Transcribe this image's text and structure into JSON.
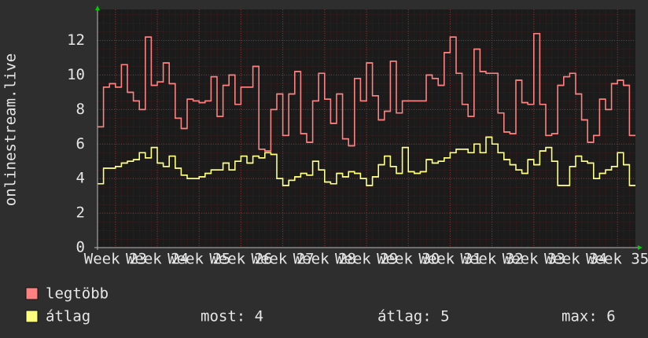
{
  "chart_data": {
    "type": "step",
    "y_label": "onlinestream.live",
    "x": [
      0,
      1,
      2,
      3,
      4,
      5,
      6,
      7,
      8,
      9,
      10,
      11,
      12,
      13,
      14,
      15,
      16,
      17,
      18,
      19,
      20,
      21,
      22,
      23,
      24,
      25,
      26,
      27,
      28,
      29,
      30,
      31,
      32,
      33,
      34,
      35,
      36,
      37,
      38,
      39,
      40,
      41,
      42,
      43,
      44,
      45,
      46,
      47,
      48,
      49,
      50,
      51,
      52,
      53,
      54,
      55,
      56,
      57,
      58,
      59,
      60,
      61,
      62,
      63,
      64,
      65,
      66,
      67,
      68,
      69,
      70,
      71,
      72,
      73,
      74,
      75,
      76,
      77,
      78,
      79,
      80,
      81,
      82,
      83,
      84,
      85,
      86,
      87,
      88,
      89
    ],
    "series": [
      {
        "name": "legtöbb",
        "color": "#ff8080",
        "values": [
          7,
          9.3,
          9.5,
          9.3,
          10.6,
          9,
          8.5,
          8,
          12.2,
          9.4,
          9.6,
          10.7,
          9.5,
          7.5,
          6.9,
          8.6,
          8.5,
          8.4,
          8.5,
          9.9,
          7.6,
          9.4,
          10,
          8.3,
          9.3,
          9.3,
          10.5,
          5.7,
          5.6,
          8,
          8.9,
          6.5,
          8.9,
          10.2,
          6.6,
          6.1,
          8.5,
          10.1,
          8.6,
          7.2,
          8.9,
          6.3,
          5.9,
          9.8,
          8.5,
          10.7,
          8.8,
          7.4,
          7.9,
          10.8,
          7.8,
          8.5,
          8.5,
          8.5,
          8.5,
          10,
          9.8,
          9.4,
          11.3,
          12.2,
          10.1,
          8.3,
          7.6,
          11.5,
          10.2,
          10.1,
          10.1,
          7.8,
          6.7,
          6.6,
          9.7,
          8.4,
          8.3,
          12.4,
          8.3,
          6.5,
          6.6,
          9.4,
          9.9,
          10.1,
          8.9,
          7.4,
          6.1,
          6.5,
          8.6,
          8,
          9.5,
          9.7,
          9.4,
          6.5
        ]
      },
      {
        "name": "átlag",
        "color": "#ffff80",
        "values": [
          3.7,
          4.6,
          4.6,
          4.7,
          4.9,
          5,
          5.1,
          5.5,
          5.2,
          5.8,
          4.9,
          4.7,
          5.3,
          4.6,
          4.2,
          4,
          4,
          4.1,
          4.3,
          4.5,
          4.5,
          4.9,
          4.5,
          5,
          5.3,
          4.9,
          5.3,
          5.2,
          5.5,
          5.4,
          4,
          3.6,
          3.9,
          4.1,
          4.3,
          4.2,
          5,
          4.5,
          3.8,
          3.7,
          4.3,
          4.1,
          4.4,
          4.3,
          4,
          3.6,
          4.1,
          4.8,
          5.3,
          4.7,
          4.3,
          5.8,
          4.4,
          4.3,
          4.4,
          5.1,
          4.9,
          5,
          5.2,
          5.5,
          5.7,
          5.7,
          5.5,
          6,
          5.5,
          6.4,
          6,
          5.5,
          5.1,
          4.8,
          4.5,
          4.3,
          5.1,
          4.8,
          5.6,
          5.8,
          5,
          3.6,
          3.6,
          4.7,
          5.3,
          5,
          4.9,
          4,
          4.3,
          4.5,
          4.7,
          5.5,
          4.8,
          3.6
        ]
      }
    ],
    "xlim": [
      0,
      90
    ],
    "xticks": [
      {
        "value": 3,
        "label": "Week 23"
      },
      {
        "value": 10,
        "label": "Week 24"
      },
      {
        "value": 17,
        "label": "Week 25"
      },
      {
        "value": 24,
        "label": "Week 26"
      },
      {
        "value": 31,
        "label": "Week 27"
      },
      {
        "value": 38,
        "label": "Week 28"
      },
      {
        "value": 45,
        "label": "Week 29"
      },
      {
        "value": 52,
        "label": "Week 30"
      },
      {
        "value": 59,
        "label": "Week 31"
      },
      {
        "value": 66,
        "label": "Week 32"
      },
      {
        "value": 73,
        "label": "Week 33"
      },
      {
        "value": 80,
        "label": "Week 34"
      },
      {
        "value": 87,
        "label": "Week 35"
      }
    ],
    "ylim": [
      0,
      13.8
    ],
    "yticks": [
      0,
      2,
      4,
      6,
      8,
      10,
      12
    ],
    "grid": true,
    "stats": [
      "most: 4",
      "átlag: 5",
      "max: 6"
    ]
  }
}
